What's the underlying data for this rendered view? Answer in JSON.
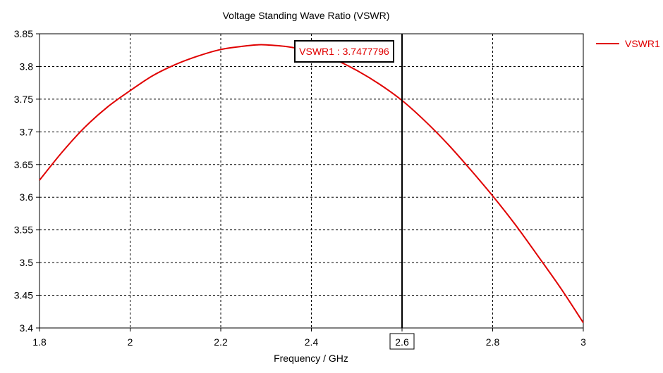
{
  "chart_data": {
    "type": "line",
    "title": "Voltage Standing Wave Ratio (VSWR)",
    "xlabel": "Frequency / GHz",
    "ylabel": "",
    "xlim": [
      1.8,
      3.0
    ],
    "ylim": [
      3.4,
      3.85
    ],
    "xticks": [
      "1.8",
      "2",
      "2.2",
      "2.4",
      "2.6",
      "2.8",
      "3"
    ],
    "yticks": [
      "3.4",
      "3.45",
      "3.5",
      "3.55",
      "3.6",
      "3.65",
      "3.7",
      "3.75",
      "3.8",
      "3.85"
    ],
    "grid": true,
    "legend_position": "right",
    "series": [
      {
        "name": "VSWR1",
        "color": "#e00000",
        "x": [
          1.8,
          1.85,
          1.9,
          1.95,
          2.0,
          2.05,
          2.1,
          2.15,
          2.2,
          2.25,
          2.28,
          2.3,
          2.35,
          2.4,
          2.45,
          2.5,
          2.55,
          2.6,
          2.65,
          2.7,
          2.75,
          2.8,
          2.85,
          2.9,
          2.95,
          3.0
        ],
        "y": [
          3.626,
          3.669,
          3.707,
          3.738,
          3.763,
          3.786,
          3.803,
          3.816,
          3.826,
          3.831,
          3.833,
          3.833,
          3.83,
          3.823,
          3.811,
          3.794,
          3.773,
          3.748,
          3.717,
          3.682,
          3.643,
          3.602,
          3.558,
          3.51,
          3.461,
          3.408
        ]
      }
    ],
    "marker": {
      "x": 2.6,
      "x_label": "2.6",
      "label": "VSWR1 : 3.7477796",
      "color": "#000000",
      "label_color": "#e00000"
    }
  }
}
